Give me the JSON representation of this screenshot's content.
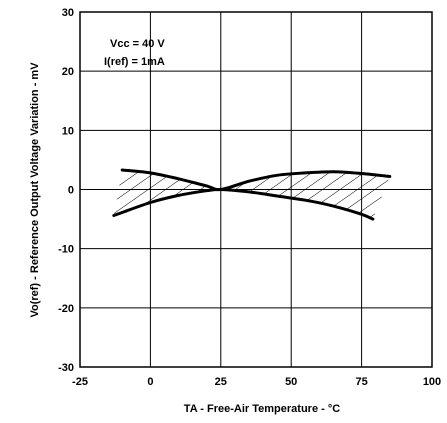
{
  "chart_data": {
    "type": "line",
    "xlabel": "TA - Free-Air Temperature - °C",
    "ylabel": "Vo(ref) - Reference Output Voltage Variation - mV",
    "xlim": [
      -25,
      100
    ],
    "ylim": [
      -30,
      30
    ],
    "x_ticks": [
      "-25",
      "0",
      "25",
      "50",
      "75",
      "100"
    ],
    "y_ticks": [
      "30",
      "20",
      "10",
      "0",
      "-10",
      "-20",
      "-30"
    ],
    "grid": true,
    "annotations": [
      "Vcc = 40 V",
      "I(ref) = 1mA"
    ],
    "series": [
      {
        "x": [
          -10,
          0,
          10,
          20,
          25,
          35,
          45,
          55,
          65,
          75,
          85
        ],
        "values": [
          3.3,
          2.8,
          1.8,
          0.6,
          0.0,
          1.4,
          2.4,
          2.8,
          3.0,
          2.7,
          2.2
        ]
      },
      {
        "x": [
          -13,
          0,
          10,
          20,
          25,
          35,
          45,
          55,
          65,
          75,
          79
        ],
        "values": [
          -4.4,
          -2.2,
          -1.0,
          -0.2,
          0.0,
          -0.4,
          -1.1,
          -1.8,
          -2.8,
          -4.2,
          -5.0
        ]
      }
    ],
    "hatched_band": {
      "description_x": [
        -10,
        79
      ],
      "fill": "diagonal hatch between the two curves"
    }
  }
}
